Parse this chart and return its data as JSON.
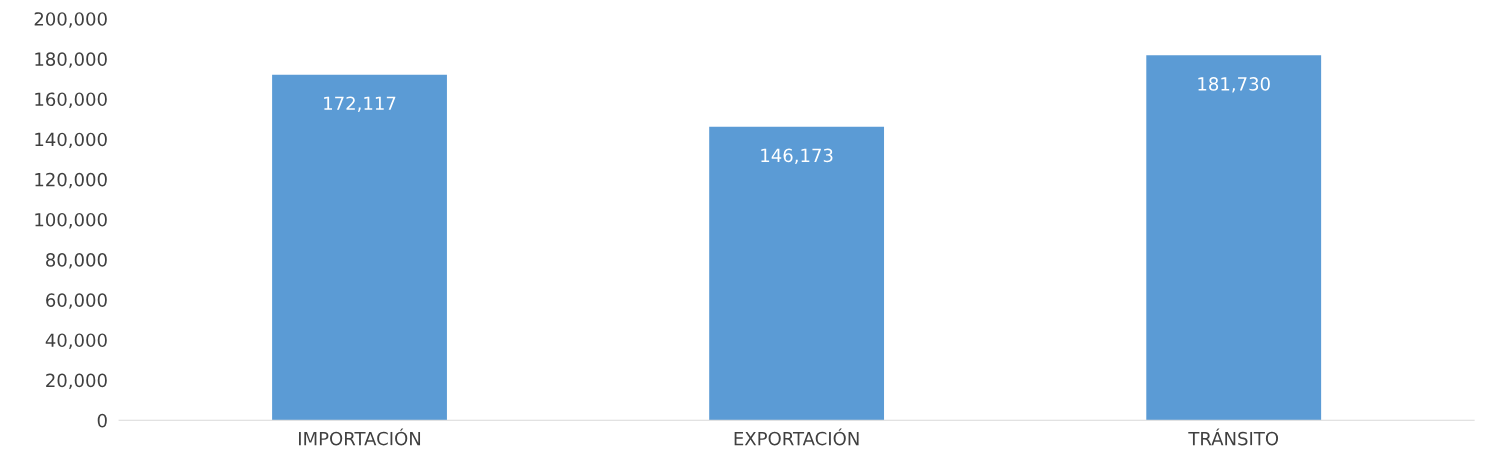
{
  "chart_data": {
    "type": "bar",
    "categories": [
      "IMPORTACIÓN",
      "EXPORTACIÓN",
      "TRÁNSITO"
    ],
    "values": [
      172117,
      146173,
      181730
    ],
    "value_labels": [
      "172,117",
      "146,173",
      "181,730"
    ],
    "color": "#5b9bd5",
    "ylim": [
      0,
      200000
    ],
    "yticks": [
      {
        "value": 0,
        "label": "0"
      },
      {
        "value": 20000,
        "label": "20,000"
      },
      {
        "value": 40000,
        "label": "40,000"
      },
      {
        "value": 60000,
        "label": "60,000"
      },
      {
        "value": 80000,
        "label": "80,000"
      },
      {
        "value": 100000,
        "label": "100,000"
      },
      {
        "value": 120000,
        "label": "120,000"
      },
      {
        "value": 140000,
        "label": "140,000"
      },
      {
        "value": 160000,
        "label": "160,000"
      },
      {
        "value": 180000,
        "label": "180,000"
      },
      {
        "value": 200000,
        "label": "200,000"
      }
    ],
    "grid": false
  }
}
